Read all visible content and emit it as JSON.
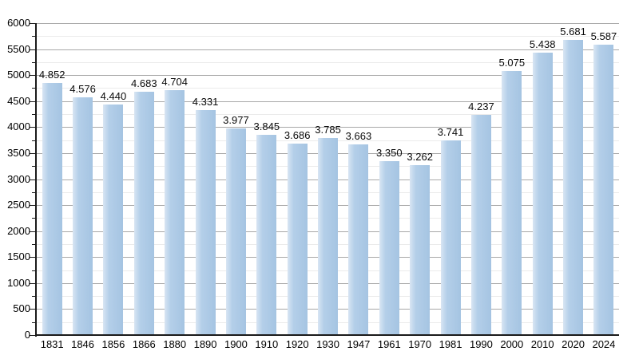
{
  "chart_data": {
    "type": "bar",
    "title": "",
    "xlabel": "",
    "ylabel": "",
    "categories": [
      "1831",
      "1846",
      "1856",
      "1866",
      "1880",
      "1890",
      "1900",
      "1910",
      "1920",
      "1930",
      "1947",
      "1961",
      "1970",
      "1981",
      "1990",
      "2000",
      "2010",
      "2020",
      "2024"
    ],
    "values": [
      4852,
      4576,
      4440,
      4683,
      4704,
      4331,
      3977,
      3845,
      3686,
      3785,
      3663,
      3350,
      3262,
      3741,
      4237,
      5075,
      5438,
      5681,
      5587
    ],
    "value_labels": [
      "4.852",
      "4.576",
      "4.440",
      "4.683",
      "4.704",
      "4.331",
      "3.977",
      "3.845",
      "3.686",
      "3.785",
      "3.663",
      "3.350",
      "3.262",
      "3.741",
      "4.237",
      "5.075",
      "5.438",
      "5.681",
      "5.587"
    ],
    "ylim": [
      0,
      6000
    ],
    "y_major_step": 500,
    "y_minor_step": 250,
    "y_tick_labels": [
      "0",
      "500",
      "1000",
      "1500",
      "2000",
      "2500",
      "3000",
      "3500",
      "4000",
      "4500",
      "5000",
      "5500",
      "6000"
    ],
    "grid": "major-and-minor-horizontal",
    "legend": "none",
    "colors": {
      "bar_fill": "#a5c4e2",
      "bar_fill_light": "#d8e5f3",
      "major_grid": "#a8a8a8",
      "minor_grid": "#ebebeb",
      "axis": "#1a1a1a",
      "label_text": "#000000",
      "background": "#ffffff"
    }
  }
}
